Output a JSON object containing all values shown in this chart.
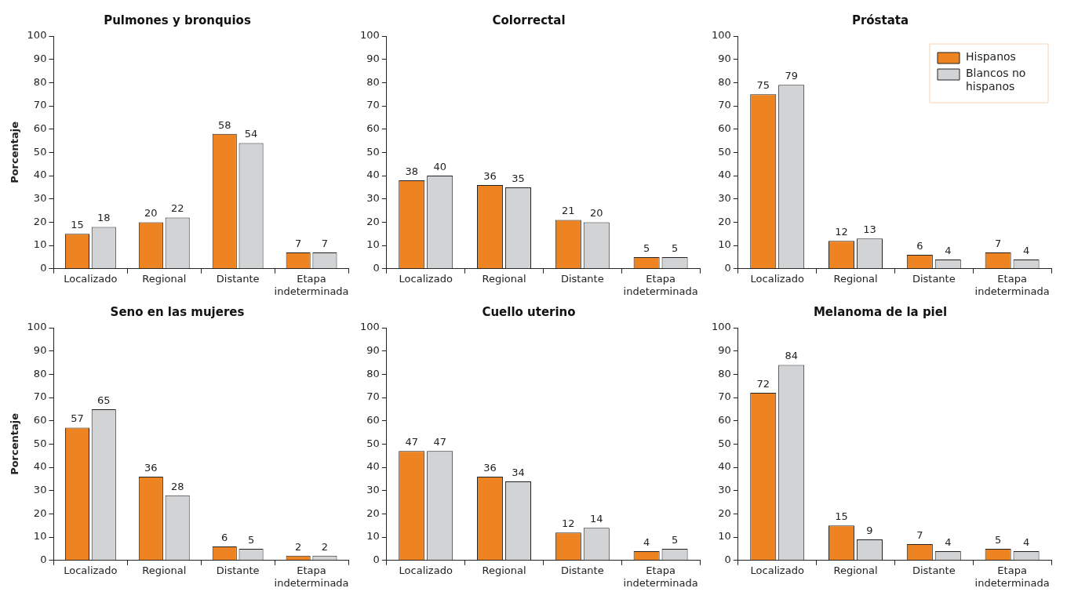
{
  "chart_data": [
    {
      "type": "bar",
      "title": "Pulmones y bronquios",
      "ylabel": "Porcentaje",
      "categories": [
        "Localizado",
        "Regional",
        "Distante",
        "Etapa indeterminada"
      ],
      "series": [
        {
          "color": "#ee8421",
          "values": [
            15,
            20,
            58,
            7
          ]
        },
        {
          "color": "#d2d3d5",
          "values": [
            18,
            22,
            54,
            7
          ]
        }
      ],
      "ylim": [
        0,
        100
      ],
      "yticks": [
        0,
        10,
        20,
        30,
        40,
        50,
        60,
        70,
        80,
        90,
        100
      ],
      "data_labels": true,
      "grid": false,
      "legend": false
    },
    {
      "type": "bar",
      "title": "Colorrectal",
      "categories": [
        "Localizado",
        "Regional",
        "Distante",
        "Etapa indeterminada"
      ],
      "series": [
        {
          "color": "#ee8421",
          "values": [
            38,
            36,
            21,
            5
          ]
        },
        {
          "color": "#d2d3d5",
          "values": [
            40,
            35,
            20,
            5
          ]
        }
      ],
      "ylim": [
        0,
        100
      ],
      "yticks": [
        0,
        10,
        20,
        30,
        40,
        50,
        60,
        70,
        80,
        90,
        100
      ],
      "data_labels": true,
      "grid": false,
      "legend": false
    },
    {
      "type": "bar",
      "title": "Próstata",
      "categories": [
        "Localizado",
        "Regional",
        "Distante",
        "Etapa indeterminada"
      ],
      "series": [
        {
          "name": "Hispanos",
          "color": "#ee8421",
          "values": [
            75,
            12,
            6,
            7
          ]
        },
        {
          "name": "Blancos no hispanos",
          "color": "#d2d3d5",
          "values": [
            79,
            13,
            4,
            4
          ]
        }
      ],
      "ylim": [
        0,
        100
      ],
      "yticks": [
        0,
        10,
        20,
        30,
        40,
        50,
        60,
        70,
        80,
        90,
        100
      ],
      "data_labels": true,
      "grid": false,
      "legend": "top right"
    },
    {
      "type": "bar",
      "title": "Seno en las mujeres",
      "ylabel": "Porcentaje",
      "categories": [
        "Localizado",
        "Regional",
        "Distante",
        "Etapa indeterminada"
      ],
      "series": [
        {
          "color": "#ee8421",
          "values": [
            57,
            36,
            6,
            2
          ]
        },
        {
          "color": "#d2d3d5",
          "values": [
            65,
            28,
            5,
            2
          ]
        }
      ],
      "ylim": [
        0,
        100
      ],
      "yticks": [
        0,
        10,
        20,
        30,
        40,
        50,
        60,
        70,
        80,
        90,
        100
      ],
      "data_labels": true,
      "grid": false,
      "legend": false
    },
    {
      "type": "bar",
      "title": "Cuello uterino",
      "categories": [
        "Localizado",
        "Regional",
        "Distante",
        "Etapa indeterminada"
      ],
      "series": [
        {
          "color": "#ee8421",
          "values": [
            47,
            36,
            12,
            4
          ]
        },
        {
          "color": "#d2d3d5",
          "values": [
            47,
            34,
            14,
            5
          ]
        }
      ],
      "ylim": [
        0,
        100
      ],
      "yticks": [
        0,
        10,
        20,
        30,
        40,
        50,
        60,
        70,
        80,
        90,
        100
      ],
      "data_labels": true,
      "grid": false,
      "legend": false
    },
    {
      "type": "bar",
      "title": "Melanoma de la piel",
      "categories": [
        "Localizado",
        "Regional",
        "Distante",
        "Etapa indeterminada"
      ],
      "series": [
        {
          "color": "#ee8421",
          "values": [
            72,
            15,
            7,
            5
          ]
        },
        {
          "color": "#d2d3d5",
          "values": [
            84,
            9,
            4,
            4
          ]
        }
      ],
      "ylim": [
        0,
        100
      ],
      "yticks": [
        0,
        10,
        20,
        30,
        40,
        50,
        60,
        70,
        80,
        90,
        100
      ],
      "data_labels": true,
      "grid": false,
      "legend": false
    }
  ]
}
